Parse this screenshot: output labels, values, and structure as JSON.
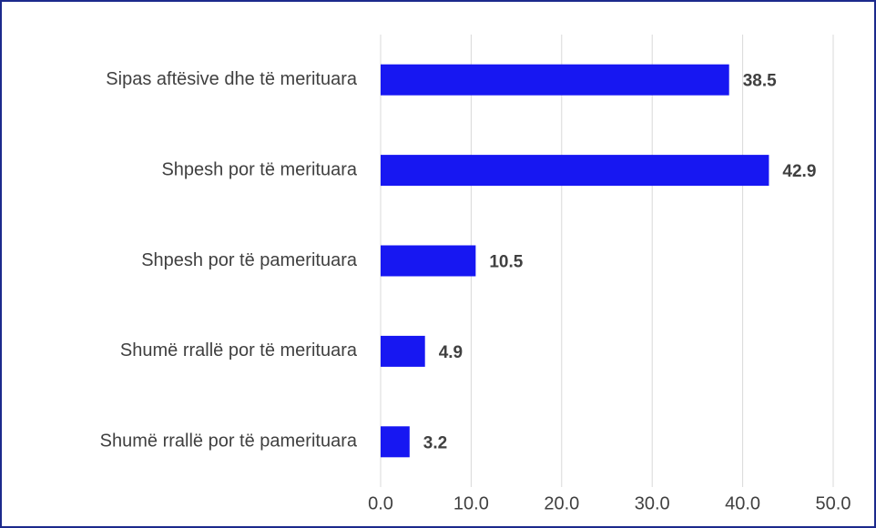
{
  "chart_data": {
    "type": "bar",
    "orientation": "horizontal",
    "categories": [
      "Sipas aftësive dhe të merituara",
      "Shpesh por të merituara",
      "Shpesh por të pamerituara",
      "Shumë rrallë por të merituara",
      "Shumë rrallë por të pamerituara"
    ],
    "values": [
      38.5,
      42.9,
      10.5,
      4.9,
      3.2
    ],
    "color": "#1717f2",
    "xlim": [
      0,
      50
    ],
    "xticks": [
      {
        "value": 0,
        "label": "0.0"
      },
      {
        "value": 10,
        "label": "10.0"
      },
      {
        "value": 20,
        "label": "20.0"
      },
      {
        "value": 30,
        "label": "30.0"
      },
      {
        "value": 40,
        "label": "40.0"
      },
      {
        "value": 50,
        "label": "50.0"
      }
    ],
    "grid": true
  }
}
